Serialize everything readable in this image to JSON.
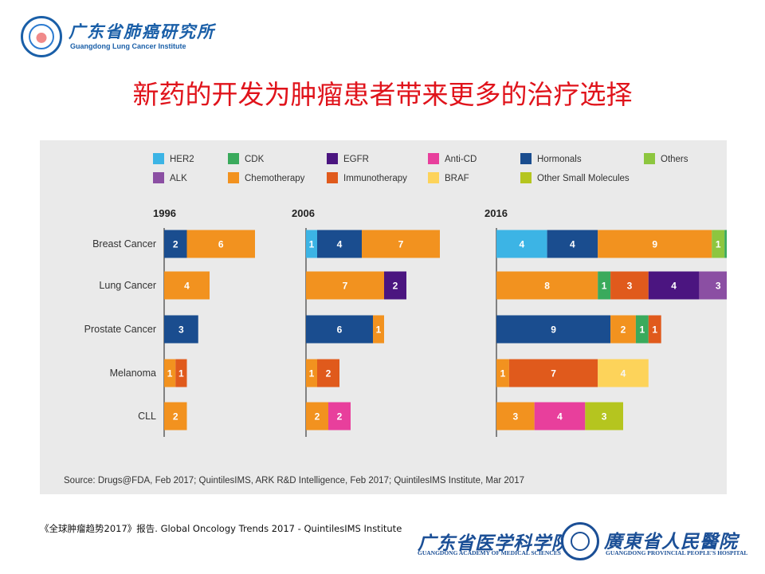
{
  "header": {
    "logo_cn": "广东省肺癌研究所",
    "logo_en": "Guangdong Lung Cancer Institute",
    "title": "新药的开发为肿瘤患者带来更多的治疗选择"
  },
  "chart_data": {
    "type": "bar",
    "stacked": true,
    "orientation": "horizontal",
    "legend_position": "top",
    "categories": [
      "Breast Cancer",
      "Lung Cancer",
      "Prostate Cancer",
      "Melanoma",
      "CLL"
    ],
    "legend": [
      {
        "key": "HER2",
        "name": "HER2",
        "color": "#3cb4e5"
      },
      {
        "key": "CDK",
        "name": "CDK",
        "color": "#3aaa5c"
      },
      {
        "key": "EGFR",
        "name": "EGFR",
        "color": "#4b1580"
      },
      {
        "key": "AntiCD",
        "name": "Anti-CD",
        "color": "#e83f9c"
      },
      {
        "key": "Hormonals",
        "name": "Hormonals",
        "color": "#1a4d8f"
      },
      {
        "key": "Others",
        "name": "Others",
        "color": "#8dc63f"
      },
      {
        "key": "ALK",
        "name": "ALK",
        "color": "#8b4fa3"
      },
      {
        "key": "Chemotherapy",
        "name": "Chemotherapy",
        "color": "#f2921f"
      },
      {
        "key": "Immunotherapy",
        "name": "Immunotherapy",
        "color": "#e05a1c"
      },
      {
        "key": "BRAF",
        "name": "BRAF",
        "color": "#fdd35a"
      },
      {
        "key": "OtherSmall",
        "name": "Other Small Molecules",
        "color": "#b5c51f"
      }
    ],
    "panels": [
      {
        "year": "1996",
        "rows": [
          [
            {
              "key": "Hormonals",
              "value": 2
            },
            {
              "key": "Chemotherapy",
              "value": 6
            }
          ],
          [
            {
              "key": "Chemotherapy",
              "value": 4
            }
          ],
          [
            {
              "key": "Hormonals",
              "value": 3
            }
          ],
          [
            {
              "key": "Chemotherapy",
              "value": 1
            },
            {
              "key": "Immunotherapy",
              "value": 1
            }
          ],
          [
            {
              "key": "Chemotherapy",
              "value": 2
            }
          ]
        ]
      },
      {
        "year": "2006",
        "rows": [
          [
            {
              "key": "HER2",
              "value": 1
            },
            {
              "key": "Hormonals",
              "value": 4
            },
            {
              "key": "Chemotherapy",
              "value": 7
            }
          ],
          [
            {
              "key": "Chemotherapy",
              "value": 7
            },
            {
              "key": "EGFR",
              "value": 2
            }
          ],
          [
            {
              "key": "Hormonals",
              "value": 6
            },
            {
              "key": "Chemotherapy",
              "value": 1
            }
          ],
          [
            {
              "key": "Chemotherapy",
              "value": 1
            },
            {
              "key": "Immunotherapy",
              "value": 2
            }
          ],
          [
            {
              "key": "Chemotherapy",
              "value": 2
            },
            {
              "key": "AntiCD",
              "value": 2
            }
          ]
        ]
      },
      {
        "year": "2016",
        "rows": [
          [
            {
              "key": "HER2",
              "value": 4
            },
            {
              "key": "Hormonals",
              "value": 4
            },
            {
              "key": "Chemotherapy",
              "value": 9
            },
            {
              "key": "Others",
              "value": 1
            },
            {
              "key": "CDK",
              "value": 1
            }
          ],
          [
            {
              "key": "Chemotherapy",
              "value": 8
            },
            {
              "key": "CDK",
              "value": 1
            },
            {
              "key": "Immunotherapy",
              "value": 3
            },
            {
              "key": "EGFR",
              "value": 4
            },
            {
              "key": "ALK",
              "value": 3
            }
          ],
          [
            {
              "key": "Hormonals",
              "value": 9
            },
            {
              "key": "Chemotherapy",
              "value": 2
            },
            {
              "key": "CDK",
              "value": 1
            },
            {
              "key": "Immunotherapy",
              "value": 1
            }
          ],
          [
            {
              "key": "Chemotherapy",
              "value": 1
            },
            {
              "key": "Immunotherapy",
              "value": 7
            },
            {
              "key": "BRAF",
              "value": 4
            }
          ],
          [
            {
              "key": "Chemotherapy",
              "value": 3
            },
            {
              "key": "AntiCD",
              "value": 4
            },
            {
              "key": "OtherSmall",
              "value": 3
            }
          ]
        ]
      }
    ],
    "source": "Source: Drugs@FDA, Feb 2017; QuintilesIMS, ARK R&D Intelligence, Feb 2017; QuintilesIMS Institute, Mar 2017"
  },
  "footer": {
    "citation": "《全球肿瘤趋势2017》报告. Global Oncology Trends 2017 - QuintilesIMS Institute",
    "academy_cn": "广东省医学科学院",
    "academy_en": "GUANGDONG ACADEMY OF MEDICAL SCIENCES",
    "hospital_cn": "廣東省人民醫院",
    "hospital_en": "GUANGDONG PROVINCIAL PEOPLE'S HOSPITAL"
  }
}
